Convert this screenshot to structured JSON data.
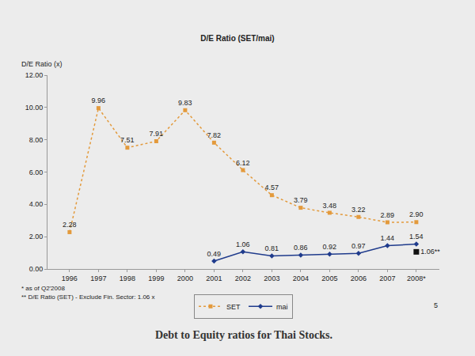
{
  "chart_data": {
    "type": "line",
    "title": "D/E Ratio (SET/mai)",
    "y_label": "D/E Ratio (x)",
    "categories": [
      "1996",
      "1997",
      "1998",
      "1999",
      "2000",
      "2001",
      "2002",
      "2003",
      "2004",
      "2005",
      "2006",
      "2007",
      "2008*"
    ],
    "series": [
      {
        "name": "SET",
        "color": "#e39a3c",
        "marker": "square",
        "line_style": "dot",
        "values": [
          2.28,
          9.96,
          7.51,
          7.91,
          9.83,
          7.82,
          6.12,
          4.57,
          3.79,
          3.48,
          3.22,
          2.89,
          2.9
        ],
        "value_labels": [
          "2.28",
          "9.96",
          "7.51",
          "7.91",
          "9.83",
          "7.82",
          "6.12",
          "4.57",
          "3.79",
          "3.48",
          "3.22",
          "2.89",
          "2.90"
        ]
      },
      {
        "name": "mai",
        "color": "#1f3b8c",
        "marker": "diamond",
        "line_style": "solid",
        "values": [
          null,
          null,
          null,
          null,
          null,
          0.49,
          1.06,
          0.81,
          0.86,
          0.92,
          0.97,
          1.44,
          1.54
        ],
        "value_labels": [
          null,
          null,
          null,
          null,
          null,
          "0.49",
          "1.06",
          "0.81",
          "0.86",
          "0.92",
          "0.97",
          "1.44",
          "1.54"
        ]
      }
    ],
    "annotations": [
      {
        "x": "2008*",
        "y": 1.06,
        "text": "1.06**",
        "marker": "square",
        "color": "#111111"
      }
    ],
    "notes": [
      "* as of Q2'2008",
      "** D/E Ratio (SET) - Exclude Fin. Sector: 1.06 x"
    ],
    "page_number": "5",
    "caption": "Debt to Equity ratios for Thai Stocks.",
    "ylim": [
      0,
      12
    ],
    "yticks": [
      {
        "value": 0,
        "label": "0.00"
      },
      {
        "value": 2,
        "label": "2.00"
      },
      {
        "value": 4,
        "label": "4.00"
      },
      {
        "value": 6,
        "label": "6.00"
      },
      {
        "value": 8,
        "label": "8.00"
      },
      {
        "value": 10,
        "label": "10.00"
      },
      {
        "value": 12,
        "label": "12.00"
      }
    ],
    "grid": false,
    "legend": "bottom",
    "data_labels": true
  }
}
